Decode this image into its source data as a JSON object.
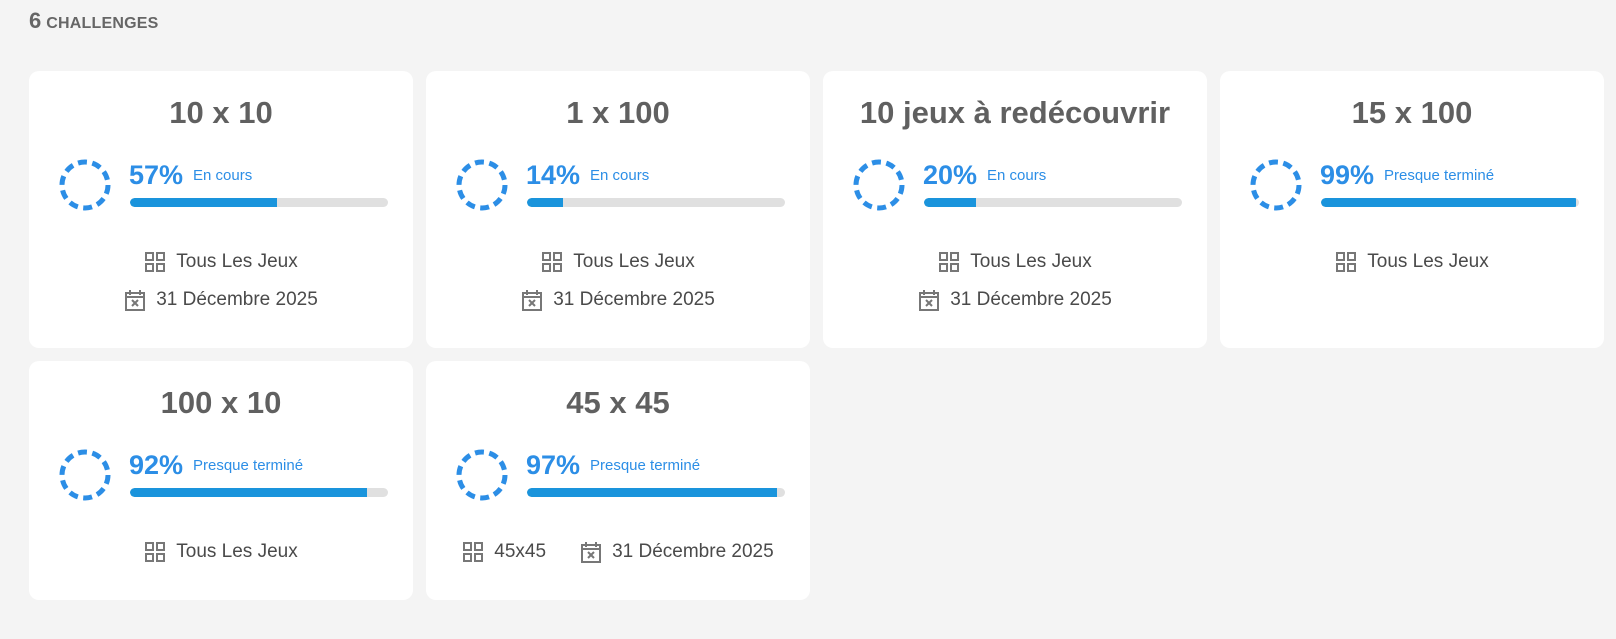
{
  "header": {
    "count": "6",
    "label": "CHALLENGES"
  },
  "colors": {
    "accent": "#2c8ee6",
    "bar_fill": "#1a94dc",
    "bar_track": "#e0e0e0"
  },
  "icons": {
    "games": "grid-icon",
    "date": "calendar-x-icon",
    "progress": "dashed-ring-icon"
  },
  "challenges": [
    {
      "title": "10 x 10",
      "percent_label": "57%",
      "progress": 0.57,
      "status": "En cours",
      "games": "Tous Les Jeux",
      "date": "31 Décembre 2025"
    },
    {
      "title": "1 x 100",
      "percent_label": "14%",
      "progress": 0.14,
      "status": "En cours",
      "games": "Tous Les Jeux",
      "date": "31 Décembre 2025"
    },
    {
      "title": "10 jeux à redécouvrir",
      "percent_label": "20%",
      "progress": 0.2,
      "status": "En cours",
      "games": "Tous Les Jeux",
      "date": "31 Décembre 2025"
    },
    {
      "title": "15 x 100",
      "percent_label": "99%",
      "progress": 0.99,
      "status": "Presque terminé",
      "games": "Tous Les Jeux"
    },
    {
      "title": "100 x 10",
      "percent_label": "92%",
      "progress": 0.92,
      "status": "Presque terminé",
      "games": "Tous Les Jeux"
    },
    {
      "title": "45 x 45",
      "percent_label": "97%",
      "progress": 0.97,
      "status": "Presque terminé",
      "games": "45x45",
      "date": "31 Décembre 2025"
    }
  ]
}
